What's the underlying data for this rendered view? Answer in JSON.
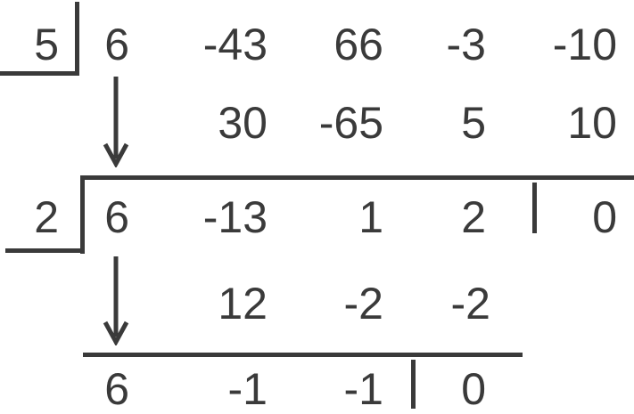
{
  "step1": {
    "divisor": "5",
    "coefficients": [
      "6",
      "-43",
      "66",
      "-3",
      "-10"
    ],
    "products": [
      "30",
      "-65",
      "5",
      "10"
    ],
    "results": [
      "6",
      "-13",
      "1",
      "2"
    ],
    "remainder": "0"
  },
  "step2": {
    "divisor": "2",
    "products": [
      "12",
      "-2",
      "-2"
    ],
    "results": [
      "6",
      "-1",
      "-1"
    ],
    "remainder": "0"
  }
}
